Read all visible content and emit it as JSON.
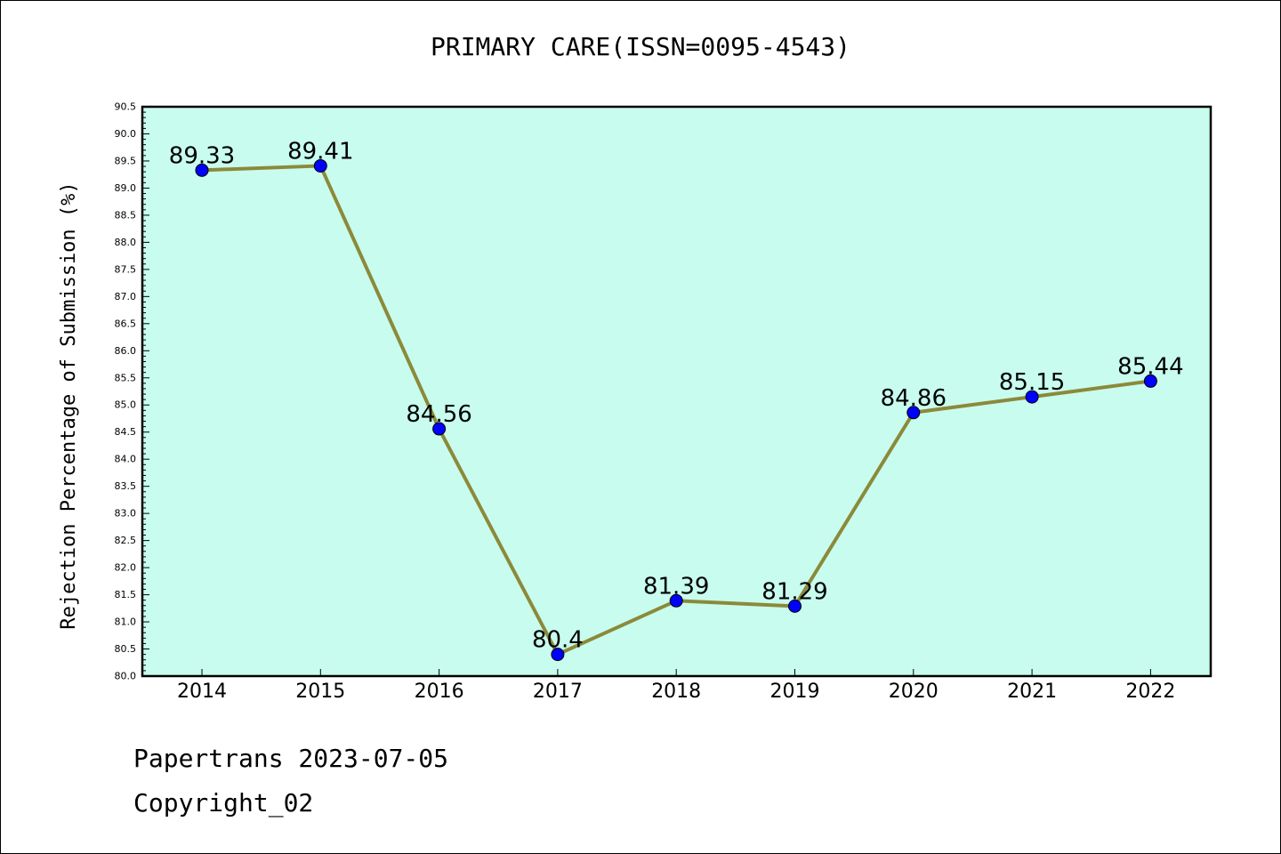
{
  "chart_data": {
    "type": "line",
    "title": "PRIMARY CARE(ISSN=0095-4543)",
    "ylabel": "Rejection Percentage of Submission (%)",
    "xlabel": "",
    "x": [
      "2014",
      "2015",
      "2016",
      "2017",
      "2018",
      "2019",
      "2020",
      "2021",
      "2022"
    ],
    "series": [
      {
        "values": [
          89.33,
          89.41,
          84.56,
          80.4,
          81.39,
          81.29,
          84.86,
          85.15,
          85.44
        ]
      }
    ],
    "data_labels": [
      "89.33",
      "89.41",
      "84.56",
      "80.4",
      "81.39",
      "81.29",
      "84.86",
      "85.15",
      "85.44"
    ],
    "ylim": [
      80.0,
      90.5
    ],
    "ytick_step": 0.5,
    "grid": false,
    "colors": {
      "line": "#8b8a3a",
      "marker": "#0000ff",
      "plot_bg": "#c8fcee"
    }
  },
  "footer": {
    "line1": "Papertrans 2023-07-05",
    "line2": "Copyright_02"
  }
}
